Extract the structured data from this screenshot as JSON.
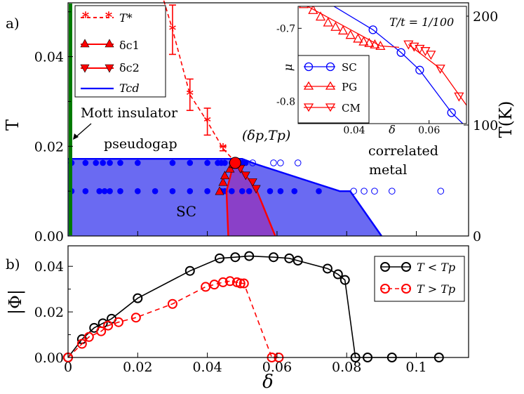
{
  "chart_data": [
    {
      "panel": "a)",
      "type": "scatter",
      "xlim": [
        0,
        0.115
      ],
      "ylim": [
        0,
        0.052
      ],
      "ylabel": "T",
      "y2label": "T(K)",
      "y2ticks": [
        "0",
        "100",
        "200"
      ],
      "yticks": [
        "0.00",
        "0.02",
        "0.04"
      ],
      "legend": [
        {
          "label": "T*",
          "color": "#ff0000"
        },
        {
          "label": "δc1",
          "color": "#ff0000"
        },
        {
          "label": "δc2",
          "color": "#ff0000"
        },
        {
          "label": "Tcd",
          "color": "#0000ff"
        }
      ],
      "annotations": {
        "mott": "Mott insulator",
        "pseudogap": "pseudogap",
        "critical": "(δp,Tp)",
        "correlated1": "correlated",
        "correlated2": "metal",
        "sc": "SC"
      },
      "tstar": [
        {
          "x": 0.03,
          "y": 0.046,
          "err": 0.0055
        },
        {
          "x": 0.035,
          "y": 0.0315,
          "err": 0.0035
        },
        {
          "x": 0.04,
          "y": 0.0255,
          "err": 0.003
        },
        {
          "x": 0.0445,
          "y": 0.0195,
          "err": 0.0005
        }
      ],
      "tstar_dash": [
        [
          0.0275,
          0.0525
        ],
        [
          0.03,
          0.046
        ],
        [
          0.035,
          0.0315
        ],
        [
          0.04,
          0.0255
        ],
        [
          0.0445,
          0.0195
        ],
        [
          0.048,
          0.0165
        ]
      ],
      "dc1": [
        [
          0.0435,
          0.01
        ],
        [
          0.0445,
          0.012
        ],
        [
          0.045,
          0.0135
        ],
        [
          0.0465,
          0.015
        ],
        [
          0.0475,
          0.016
        ]
      ],
      "dc1_line": [
        [
          0.046,
          0.0
        ],
        [
          0.0455,
          0.01
        ],
        [
          0.0475,
          0.016
        ]
      ],
      "dc2": [
        [
          0.0495,
          0.015
        ],
        [
          0.051,
          0.0135
        ],
        [
          0.053,
          0.012
        ],
        [
          0.054,
          0.0105
        ]
      ],
      "dc2_line": [
        [
          0.0595,
          0.0
        ],
        [
          0.054,
          0.0105
        ],
        [
          0.0495,
          0.015
        ]
      ],
      "critical_point": [
        0.048,
        0.0163
      ],
      "sc_dome": [
        [
          0,
          0.0
        ],
        [
          0,
          0.0172
        ],
        [
          0.05,
          0.0172
        ],
        [
          0.054,
          0.016
        ],
        [
          0.078,
          0.01
        ],
        [
          0.081,
          0.01
        ],
        [
          0.09,
          0.0
        ]
      ],
      "purple_region": [
        [
          0.046,
          0.0
        ],
        [
          0.0455,
          0.01
        ],
        [
          0.0475,
          0.016
        ],
        [
          0.0495,
          0.015
        ],
        [
          0.054,
          0.0105
        ],
        [
          0.0595,
          0.0
        ]
      ],
      "filled_points": [
        [
          0.001,
          0.0163
        ],
        [
          0.005,
          0.0163
        ],
        [
          0.008,
          0.0163
        ],
        [
          0.01,
          0.0163
        ],
        [
          0.012,
          0.0163
        ],
        [
          0.015,
          0.0163
        ],
        [
          0.02,
          0.0163
        ],
        [
          0.03,
          0.0163
        ],
        [
          0.035,
          0.0163
        ],
        [
          0.04,
          0.0163
        ],
        [
          0.043,
          0.0163
        ],
        [
          0.044,
          0.0163
        ],
        [
          0.045,
          0.0163
        ],
        [
          0.047,
          0.0163
        ],
        [
          0.049,
          0.0163
        ],
        [
          0.05,
          0.0163
        ],
        [
          0.051,
          0.0163
        ],
        [
          0.001,
          0.01
        ],
        [
          0.005,
          0.01
        ],
        [
          0.009,
          0.01
        ],
        [
          0.0105,
          0.01
        ],
        [
          0.012,
          0.01
        ],
        [
          0.015,
          0.01
        ],
        [
          0.02,
          0.01
        ],
        [
          0.025,
          0.01
        ],
        [
          0.03,
          0.01
        ],
        [
          0.035,
          0.01
        ],
        [
          0.04,
          0.01
        ],
        [
          0.044,
          0.01
        ],
        [
          0.045,
          0.01
        ],
        [
          0.047,
          0.01
        ],
        [
          0.05,
          0.01
        ],
        [
          0.052,
          0.01
        ],
        [
          0.058,
          0.01
        ],
        [
          0.061,
          0.01
        ],
        [
          0.065,
          0.01
        ],
        [
          0.072,
          0.01
        ]
      ],
      "open_points": [
        [
          0.053,
          0.0163
        ],
        [
          0.059,
          0.0163
        ],
        [
          0.061,
          0.0163
        ],
        [
          0.066,
          0.0163
        ],
        [
          0.082,
          0.01
        ],
        [
          0.085,
          0.01
        ],
        [
          0.088,
          0.01
        ],
        [
          0.093,
          0.01
        ],
        [
          0.107,
          0.01
        ]
      ]
    },
    {
      "panel": "inset",
      "type": "line",
      "title": "T/t = 1/100",
      "xlabel": "δ",
      "ylabel": "μ",
      "xlim": [
        0.025,
        0.07
      ],
      "ylim": [
        -0.83,
        -0.67
      ],
      "xticks": [
        "0.04",
        "0.06"
      ],
      "yticks": [
        "-0.7",
        "-0.8"
      ],
      "legend": [
        {
          "label": "SC",
          "color": "#0000ff"
        },
        {
          "label": "PG",
          "color": "#ff0000"
        },
        {
          "label": "CM",
          "color": "#ff0000"
        }
      ],
      "series": [
        {
          "name": "SC",
          "marker": "circle",
          "color": "#0000ff",
          "x": [
            0.0335,
            0.045,
            0.0525,
            0.0575,
            0.066
          ],
          "y": [
            -0.664,
            -0.702,
            -0.733,
            -0.757,
            -0.815
          ],
          "line": [
            [
              0.032,
              -0.662
            ],
            [
              0.045,
              -0.702
            ],
            [
              0.0525,
              -0.733
            ],
            [
              0.0575,
              -0.757
            ],
            [
              0.066,
              -0.815
            ],
            [
              0.069,
              -0.83
            ]
          ]
        },
        {
          "name": "PG",
          "marker": "triangle-up",
          "color": "#ff0000",
          "x": [
            0.0265,
            0.029,
            0.031,
            0.033,
            0.035,
            0.037,
            0.039,
            0.041,
            0.0425,
            0.044,
            0.0455,
            0.047
          ],
          "y": [
            -0.667,
            -0.675,
            -0.684,
            -0.692,
            -0.698,
            -0.703,
            -0.709,
            -0.714,
            -0.718,
            -0.72,
            -0.722,
            -0.724
          ],
          "line": [
            [
              0.025,
              -0.663
            ],
            [
              0.047,
              -0.724
            ],
            [
              0.052,
              -0.726
            ]
          ]
        },
        {
          "name": "CM",
          "marker": "triangle-down",
          "color": "#ff0000",
          "x": [
            0.0545,
            0.056,
            0.0575,
            0.059,
            0.0605,
            0.063,
            0.068
          ],
          "y": [
            -0.722,
            -0.725,
            -0.728,
            -0.731,
            -0.736,
            -0.755,
            -0.793
          ],
          "line": [
            [
              0.0545,
              -0.722
            ],
            [
              0.063,
              -0.755
            ],
            [
              0.07,
              -0.805
            ]
          ]
        }
      ]
    },
    {
      "panel": "b)",
      "type": "line",
      "xlabel": "δ",
      "ylabel": "|Φ|",
      "xlim": [
        0,
        0.115
      ],
      "ylim": [
        0,
        0.049
      ],
      "xticks": [
        "0",
        "0.02",
        "0.04",
        "0.06",
        "0.08",
        "0.1"
      ],
      "yticks": [
        "0.00",
        "0.02",
        "0.04"
      ],
      "legend": [
        {
          "label": "T < Tp",
          "color": "#000000"
        },
        {
          "label": "T > Tp",
          "color": "#ff0000"
        }
      ],
      "series": [
        {
          "name": "T < Tp",
          "color": "#000000",
          "dash": false,
          "x": [
            0.0,
            0.004,
            0.0075,
            0.01,
            0.0125,
            0.02,
            0.035,
            0.0435,
            0.048,
            0.052,
            0.059,
            0.0635,
            0.066,
            0.0745,
            0.0775,
            0.0795,
            0.0825,
            0.086,
            0.093,
            0.1065
          ],
          "y": [
            0.0,
            0.008,
            0.013,
            0.015,
            0.017,
            0.026,
            0.038,
            0.0435,
            0.044,
            0.0445,
            0.044,
            0.0435,
            0.0425,
            0.039,
            0.0365,
            0.034,
            0.0,
            0.0,
            0.0,
            0.0
          ]
        },
        {
          "name": "T > Tp",
          "color": "#ff0000",
          "dash": true,
          "x": [
            0.0,
            0.004,
            0.006,
            0.0095,
            0.0115,
            0.0145,
            0.0195,
            0.03,
            0.0395,
            0.042,
            0.0445,
            0.0465,
            0.0485,
            0.0495,
            0.0505,
            0.0585,
            0.0605
          ],
          "y": [
            0.0,
            0.006,
            0.009,
            0.0115,
            0.014,
            0.0155,
            0.0175,
            0.0235,
            0.031,
            0.032,
            0.033,
            0.0335,
            0.033,
            0.0325,
            0.0325,
            0.0,
            0.0
          ]
        }
      ]
    }
  ]
}
